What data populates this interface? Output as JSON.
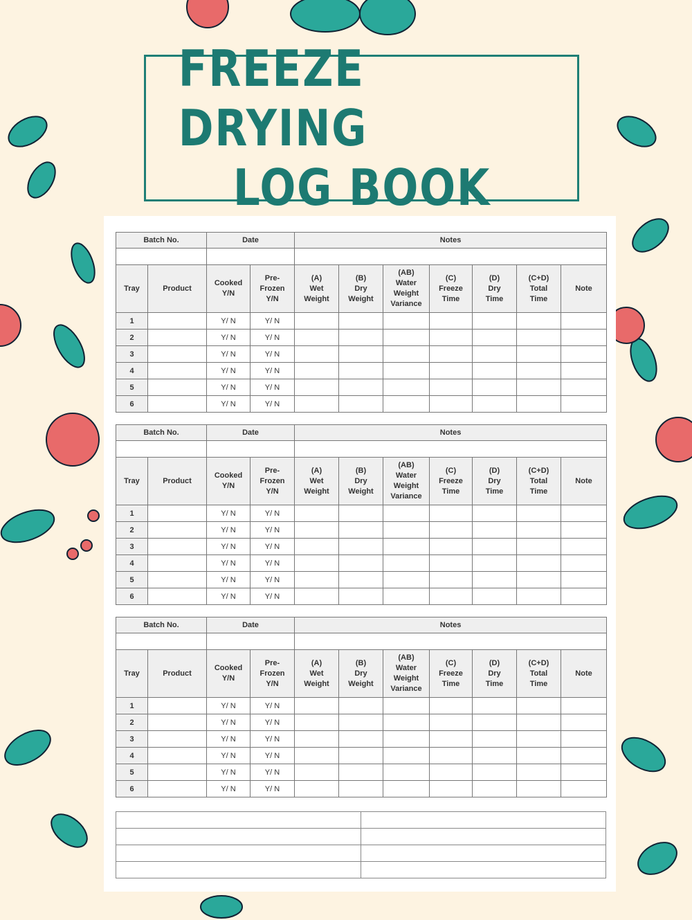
{
  "title": {
    "line1": "FREEZE DRYING",
    "line2": "LOG BOOK"
  },
  "colors": {
    "background": "#fdf3e1",
    "title_teal": "#1d7a72",
    "leaf_teal": "#2aa89a",
    "flower_pink": "#e86a6a"
  },
  "log_section": {
    "batch_header": {
      "batch_no": "Batch No.",
      "date": "Date",
      "notes": "Notes"
    },
    "columns": [
      {
        "lines": [
          "Tray"
        ]
      },
      {
        "lines": [
          "Product"
        ]
      },
      {
        "lines": [
          "Cooked",
          "Y/N"
        ]
      },
      {
        "lines": [
          "Pre-",
          "Frozen",
          "Y/N"
        ]
      },
      {
        "lines": [
          "(A)",
          "Wet",
          "Weight"
        ]
      },
      {
        "lines": [
          "(B)",
          "Dry",
          "Weight"
        ]
      },
      {
        "lines": [
          "(AB)",
          "Water",
          "Weight",
          "Variance"
        ]
      },
      {
        "lines": [
          "(C)",
          "Freeze",
          "Time"
        ]
      },
      {
        "lines": [
          "(D)",
          "Dry",
          "Time"
        ]
      },
      {
        "lines": [
          "(C+D)",
          "Total",
          "Time"
        ]
      },
      {
        "lines": [
          "Note"
        ]
      }
    ],
    "trays": [
      "1",
      "2",
      "3",
      "4",
      "5",
      "6"
    ],
    "yn_placeholder": "Y/ N"
  },
  "section_count": 3,
  "bottom_table_rows": 4
}
